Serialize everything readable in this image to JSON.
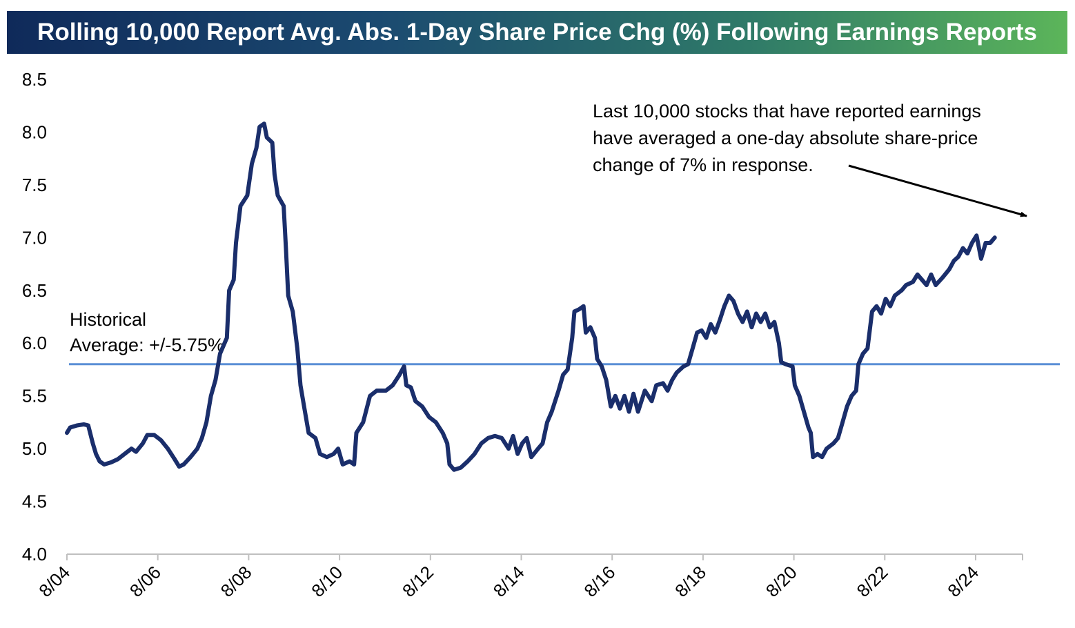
{
  "title": "Rolling 10,000 Report Avg. Abs. 1-Day Share Price Chg (%) Following Earnings Reports",
  "colors": {
    "series": "#1a2e6b",
    "reference_line": "#5b8fd6",
    "title_gradient_start": "#0f2a5a",
    "title_gradient_end": "#5cb55a"
  },
  "chart_data": {
    "type": "line",
    "title": "Rolling 10,000 Report Avg. Abs. 1-Day Share Price Chg (%) Following Earnings Reports",
    "xlabel": "",
    "ylabel": "",
    "ylim": [
      4.0,
      8.5
    ],
    "yticks": [
      "4.0",
      "4.5",
      "5.0",
      "5.5",
      "6.0",
      "6.5",
      "7.0",
      "7.5",
      "8.0",
      "8.5"
    ],
    "xticks": [
      "8/04",
      "8/06",
      "8/08",
      "8/10",
      "8/12",
      "8/14",
      "8/16",
      "8/18",
      "8/20",
      "8/22",
      "8/24"
    ],
    "grid": false,
    "reference_line": {
      "label_line1": "Historical",
      "label_line2": "Average: +/-5.75%",
      "value": 5.8
    },
    "annotation": {
      "lines": [
        "Last 10,000 stocks that have reported earnings",
        "have averaged a one-day absolute share-price",
        "change of 7% in response."
      ]
    },
    "series": [
      {
        "values": [
          [
            2004.58,
            5.15
          ],
          [
            2004.65,
            5.2
          ],
          [
            2004.8,
            5.22
          ],
          [
            2004.95,
            5.23
          ],
          [
            2005.05,
            5.22
          ],
          [
            2005.15,
            5.05
          ],
          [
            2005.22,
            4.95
          ],
          [
            2005.3,
            4.88
          ],
          [
            2005.4,
            4.85
          ],
          [
            2005.55,
            4.87
          ],
          [
            2005.7,
            4.9
          ],
          [
            2005.85,
            4.95
          ],
          [
            2006.0,
            5.0
          ],
          [
            2006.1,
            4.97
          ],
          [
            2006.25,
            5.05
          ],
          [
            2006.35,
            5.13
          ],
          [
            2006.5,
            5.13
          ],
          [
            2006.65,
            5.08
          ],
          [
            2006.8,
            5.0
          ],
          [
            2006.95,
            4.9
          ],
          [
            2007.05,
            4.83
          ],
          [
            2007.15,
            4.85
          ],
          [
            2007.3,
            4.92
          ],
          [
            2007.45,
            5.0
          ],
          [
            2007.55,
            5.1
          ],
          [
            2007.65,
            5.25
          ],
          [
            2007.75,
            5.5
          ],
          [
            2007.85,
            5.65
          ],
          [
            2007.95,
            5.9
          ],
          [
            2008.05,
            6.0
          ],
          [
            2008.1,
            6.05
          ],
          [
            2008.15,
            6.5
          ],
          [
            2008.25,
            6.6
          ],
          [
            2008.3,
            6.95
          ],
          [
            2008.4,
            7.3
          ],
          [
            2008.55,
            7.4
          ],
          [
            2008.65,
            7.7
          ],
          [
            2008.75,
            7.85
          ],
          [
            2008.82,
            8.05
          ],
          [
            2008.92,
            8.08
          ],
          [
            2008.98,
            7.95
          ],
          [
            2009.1,
            7.9
          ],
          [
            2009.15,
            7.6
          ],
          [
            2009.22,
            7.4
          ],
          [
            2009.35,
            7.3
          ],
          [
            2009.4,
            6.9
          ],
          [
            2009.45,
            6.45
          ],
          [
            2009.55,
            6.3
          ],
          [
            2009.65,
            5.95
          ],
          [
            2009.72,
            5.6
          ],
          [
            2009.8,
            5.4
          ],
          [
            2009.9,
            5.15
          ],
          [
            2010.05,
            5.1
          ],
          [
            2010.15,
            4.95
          ],
          [
            2010.3,
            4.92
          ],
          [
            2010.45,
            4.95
          ],
          [
            2010.55,
            5.0
          ],
          [
            2010.65,
            4.85
          ],
          [
            2010.8,
            4.88
          ],
          [
            2010.9,
            4.85
          ],
          [
            2010.95,
            5.15
          ],
          [
            2011.1,
            5.25
          ],
          [
            2011.25,
            5.5
          ],
          [
            2011.4,
            5.55
          ],
          [
            2011.6,
            5.55
          ],
          [
            2011.75,
            5.6
          ],
          [
            2011.9,
            5.7
          ],
          [
            2012.0,
            5.78
          ],
          [
            2012.05,
            5.6
          ],
          [
            2012.15,
            5.58
          ],
          [
            2012.25,
            5.45
          ],
          [
            2012.4,
            5.4
          ],
          [
            2012.55,
            5.3
          ],
          [
            2012.7,
            5.25
          ],
          [
            2012.85,
            5.15
          ],
          [
            2012.95,
            5.05
          ],
          [
            2013.0,
            4.85
          ],
          [
            2013.1,
            4.8
          ],
          [
            2013.25,
            4.82
          ],
          [
            2013.4,
            4.88
          ],
          [
            2013.55,
            4.95
          ],
          [
            2013.7,
            5.05
          ],
          [
            2013.85,
            5.1
          ],
          [
            2014.0,
            5.12
          ],
          [
            2014.15,
            5.1
          ],
          [
            2014.3,
            5.0
          ],
          [
            2014.4,
            5.12
          ],
          [
            2014.5,
            4.95
          ],
          [
            2014.6,
            5.05
          ],
          [
            2014.7,
            5.1
          ],
          [
            2014.8,
            4.92
          ],
          [
            2014.95,
            5.0
          ],
          [
            2015.05,
            5.05
          ],
          [
            2015.15,
            5.25
          ],
          [
            2015.25,
            5.35
          ],
          [
            2015.4,
            5.55
          ],
          [
            2015.5,
            5.7
          ],
          [
            2015.6,
            5.75
          ],
          [
            2015.7,
            6.05
          ],
          [
            2015.75,
            6.3
          ],
          [
            2015.85,
            6.32
          ],
          [
            2015.95,
            6.35
          ],
          [
            2016.0,
            6.1
          ],
          [
            2016.1,
            6.15
          ],
          [
            2016.2,
            6.05
          ],
          [
            2016.25,
            5.85
          ],
          [
            2016.35,
            5.78
          ],
          [
            2016.45,
            5.65
          ],
          [
            2016.55,
            5.4
          ],
          [
            2016.65,
            5.5
          ],
          [
            2016.75,
            5.38
          ],
          [
            2016.85,
            5.5
          ],
          [
            2016.95,
            5.35
          ],
          [
            2017.05,
            5.52
          ],
          [
            2017.15,
            5.35
          ],
          [
            2017.3,
            5.55
          ],
          [
            2017.45,
            5.45
          ],
          [
            2017.55,
            5.6
          ],
          [
            2017.7,
            5.62
          ],
          [
            2017.8,
            5.55
          ],
          [
            2017.9,
            5.65
          ],
          [
            2018.0,
            5.72
          ],
          [
            2018.15,
            5.78
          ],
          [
            2018.25,
            5.8
          ],
          [
            2018.35,
            5.95
          ],
          [
            2018.45,
            6.1
          ],
          [
            2018.55,
            6.12
          ],
          [
            2018.65,
            6.05
          ],
          [
            2018.75,
            6.18
          ],
          [
            2018.85,
            6.1
          ],
          [
            2018.95,
            6.22
          ],
          [
            2019.05,
            6.35
          ],
          [
            2019.15,
            6.45
          ],
          [
            2019.25,
            6.4
          ],
          [
            2019.35,
            6.28
          ],
          [
            2019.45,
            6.2
          ],
          [
            2019.55,
            6.3
          ],
          [
            2019.65,
            6.15
          ],
          [
            2019.75,
            6.28
          ],
          [
            2019.85,
            6.2
          ],
          [
            2019.95,
            6.28
          ],
          [
            2020.05,
            6.15
          ],
          [
            2020.15,
            6.2
          ],
          [
            2020.25,
            6.0
          ],
          [
            2020.3,
            5.82
          ],
          [
            2020.4,
            5.8
          ],
          [
            2020.55,
            5.78
          ],
          [
            2020.6,
            5.6
          ],
          [
            2020.7,
            5.5
          ],
          [
            2020.8,
            5.35
          ],
          [
            2020.9,
            5.2
          ],
          [
            2020.95,
            5.15
          ],
          [
            2021.0,
            4.92
          ],
          [
            2021.1,
            4.95
          ],
          [
            2021.2,
            4.92
          ],
          [
            2021.3,
            5.0
          ],
          [
            2021.45,
            5.05
          ],
          [
            2021.55,
            5.1
          ],
          [
            2021.65,
            5.25
          ],
          [
            2021.75,
            5.4
          ],
          [
            2021.85,
            5.5
          ],
          [
            2021.95,
            5.55
          ],
          [
            2022.0,
            5.8
          ],
          [
            2022.1,
            5.9
          ],
          [
            2022.2,
            5.95
          ],
          [
            2022.3,
            6.3
          ],
          [
            2022.4,
            6.35
          ],
          [
            2022.5,
            6.28
          ],
          [
            2022.6,
            6.42
          ],
          [
            2022.7,
            6.35
          ],
          [
            2022.8,
            6.45
          ],
          [
            2022.95,
            6.5
          ],
          [
            2023.05,
            6.55
          ],
          [
            2023.2,
            6.58
          ],
          [
            2023.3,
            6.65
          ],
          [
            2023.4,
            6.6
          ],
          [
            2023.5,
            6.55
          ],
          [
            2023.6,
            6.65
          ],
          [
            2023.7,
            6.55
          ],
          [
            2023.85,
            6.62
          ],
          [
            2024.0,
            6.7
          ],
          [
            2024.1,
            6.78
          ],
          [
            2024.2,
            6.82
          ],
          [
            2024.3,
            6.9
          ],
          [
            2024.4,
            6.85
          ],
          [
            2024.5,
            6.95
          ],
          [
            2024.6,
            7.02
          ],
          [
            2024.7,
            6.8
          ],
          [
            2024.8,
            6.95
          ],
          [
            2024.9,
            6.95
          ],
          [
            2025.0,
            7.0
          ]
        ]
      }
    ]
  }
}
